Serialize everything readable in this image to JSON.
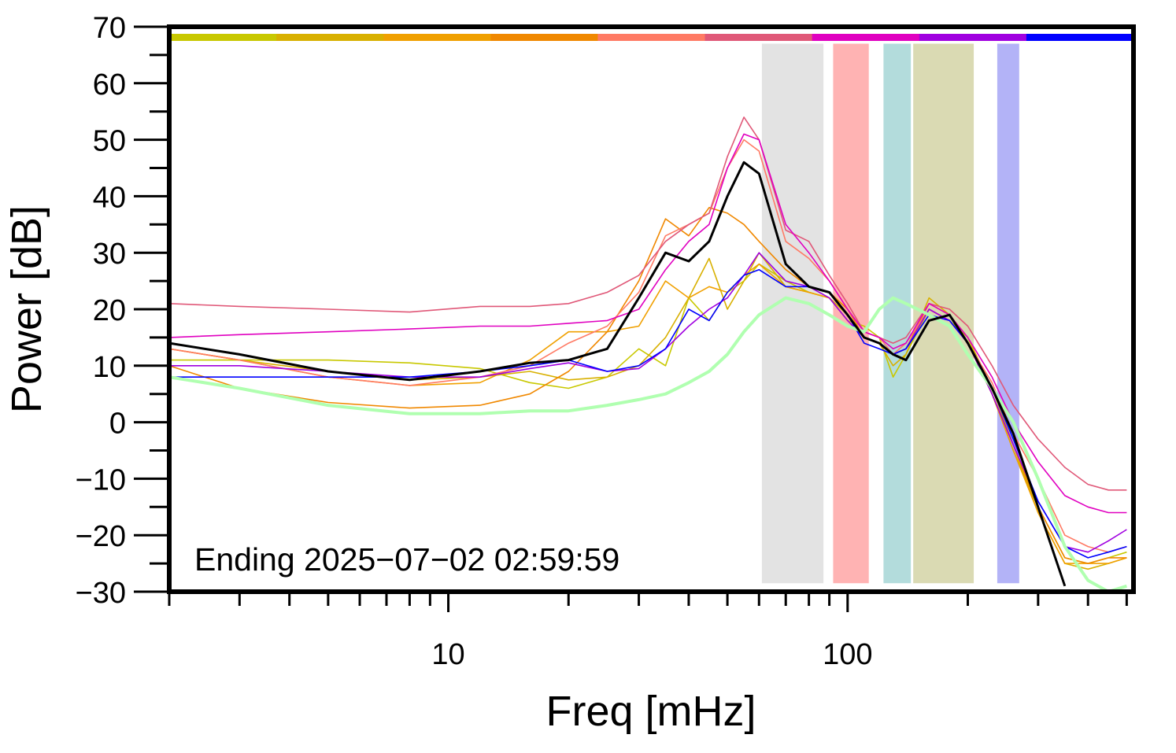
{
  "chart_data": {
    "type": "line",
    "x_label": "Freq [mHz]",
    "y_label": "Power [dB]",
    "annotation": "Ending 2025−07−02 02:59:59",
    "log_x": true,
    "xlim": [
      2,
      520
    ],
    "ylim": [
      -30,
      70
    ],
    "xticks": [
      10,
      100
    ],
    "xminorticks": [
      2,
      3,
      4,
      5,
      6,
      7,
      8,
      9,
      20,
      30,
      40,
      50,
      60,
      70,
      80,
      90,
      200,
      300,
      400,
      500
    ],
    "yticks": [
      {
        "value": -30,
        "label": "−30"
      },
      {
        "value": -20,
        "label": "−20"
      },
      {
        "value": -10,
        "label": "−10"
      },
      0,
      10,
      20,
      30,
      40,
      50,
      60,
      70
    ],
    "yminorticks": [
      -25,
      -15,
      -5,
      5,
      15,
      25,
      35,
      45,
      55,
      65
    ],
    "bands": [
      {
        "range": [
          61,
          87
        ],
        "color": "#e3e3e3"
      },
      {
        "range": [
          92,
          113
        ],
        "color": "#ffb3b3"
      },
      {
        "range": [
          123,
          144
        ],
        "color": "#b3dcdc"
      },
      {
        "range": [
          146,
          207
        ],
        "color": "#dadab3"
      },
      {
        "range": [
          237,
          269
        ],
        "color": "#b3b3f7"
      }
    ],
    "band_ylim": [
      -28.5,
      67
    ],
    "x": [
      2,
      3,
      5,
      8,
      12,
      16,
      20,
      25,
      30,
      35,
      40,
      45,
      50,
      55,
      60,
      70,
      80,
      90,
      100,
      110,
      120,
      130,
      140,
      160,
      180,
      200,
      230,
      260,
      300,
      350,
      400,
      450,
      500
    ],
    "series": [
      {
        "color": "#c8c800",
        "values": [
          11,
          11,
          11,
          10.5,
          9.5,
          7,
          6,
          8,
          13,
          10,
          22,
          18,
          23,
          25,
          28,
          25,
          23,
          22,
          18,
          17,
          15,
          8,
          12,
          20,
          18,
          15,
          5,
          -5,
          -15,
          -24,
          -25,
          -24,
          -23
        ]
      },
      {
        "color": "#d8b000",
        "values": [
          13,
          11,
          9,
          7.5,
          8,
          9,
          7.5,
          8,
          10,
          15,
          22,
          29,
          20,
          25,
          30,
          24,
          23,
          22,
          19,
          15,
          14,
          10,
          12,
          22,
          19,
          15,
          6,
          -4,
          -16,
          -25,
          -26,
          -25,
          -24
        ]
      },
      {
        "color": "#f0a000",
        "values": [
          13,
          11,
          8,
          6.5,
          7,
          11,
          16,
          16,
          17,
          25,
          22,
          24,
          23,
          26,
          28,
          24,
          23,
          22,
          18,
          15,
          14,
          12,
          13,
          21,
          19,
          14,
          5,
          -5,
          -16,
          -25,
          -25,
          -25,
          -24
        ]
      },
      {
        "color": "#f08800",
        "values": [
          10,
          6,
          3.5,
          2.5,
          3,
          5,
          9,
          16,
          25,
          36,
          33,
          38,
          37,
          35,
          32,
          27,
          24,
          23,
          20,
          15,
          14,
          12,
          13,
          20,
          18,
          14,
          5,
          -4,
          -15,
          -24,
          -25,
          -24,
          -24
        ]
      },
      {
        "color": "#ff7a64",
        "values": [
          13,
          11,
          8,
          6.5,
          8,
          10,
          14,
          17,
          23,
          33,
          35,
          37,
          45,
          50,
          48,
          32,
          29,
          25,
          20,
          16,
          15,
          12,
          14,
          20,
          18,
          14,
          7,
          -2,
          -10,
          -20,
          -22,
          -23,
          -22
        ]
      },
      {
        "color": "#e05878",
        "values": [
          21,
          20.5,
          20,
          19.5,
          20.5,
          20.5,
          21,
          23,
          26,
          32,
          35,
          37,
          47,
          54,
          50,
          34,
          32,
          26,
          21,
          16,
          15,
          14,
          15,
          21,
          20,
          17,
          10,
          3,
          -3,
          -8,
          -11,
          -12,
          -12
        ]
      },
      {
        "color": "#e000c0",
        "values": [
          15,
          15.5,
          16,
          16.5,
          17,
          17,
          17.5,
          18,
          20,
          27,
          32,
          35,
          45,
          51,
          50,
          35,
          30,
          25,
          20,
          16,
          15,
          13,
          14,
          21,
          19,
          15,
          8,
          0,
          -7,
          -13,
          -15,
          -16,
          -16
        ]
      },
      {
        "color": "#a000e0",
        "values": [
          10,
          10,
          9,
          8,
          8,
          9.5,
          10.5,
          9,
          9.5,
          13,
          17,
          20,
          22,
          26,
          30,
          25,
          24,
          22,
          18,
          15,
          14,
          12,
          13,
          20,
          18,
          14,
          5,
          -4,
          -14,
          -22,
          -23,
          -21,
          -19
        ]
      },
      {
        "color": "#0000ff",
        "values": [
          8,
          8,
          8,
          8,
          9,
          10,
          11,
          9,
          10,
          13,
          20,
          18,
          23,
          26,
          27,
          24,
          24,
          23,
          19,
          14,
          13,
          12,
          13,
          19,
          18,
          14,
          6,
          -3,
          -14,
          -22,
          -24,
          -23,
          -22
        ]
      },
      {
        "color": "#b0ffb0",
        "width": 4,
        "values": [
          8,
          6,
          3,
          1.5,
          1.5,
          2,
          2,
          3,
          4,
          5,
          7,
          9,
          12,
          16,
          19,
          22,
          21,
          19,
          17,
          16,
          20,
          22,
          21,
          19,
          17,
          12,
          6,
          0,
          -10,
          -22,
          -28,
          -30,
          -29
        ]
      },
      {
        "color": "#000000",
        "width": 3,
        "values": [
          14,
          12,
          9,
          7.5,
          9,
          10.5,
          11,
          13,
          22,
          30,
          28.5,
          32,
          40,
          46,
          44,
          28,
          24,
          23,
          19,
          15,
          14,
          12,
          11,
          18,
          19,
          14,
          6,
          -2,
          -15,
          -29,
          null,
          null,
          null
        ]
      }
    ]
  }
}
